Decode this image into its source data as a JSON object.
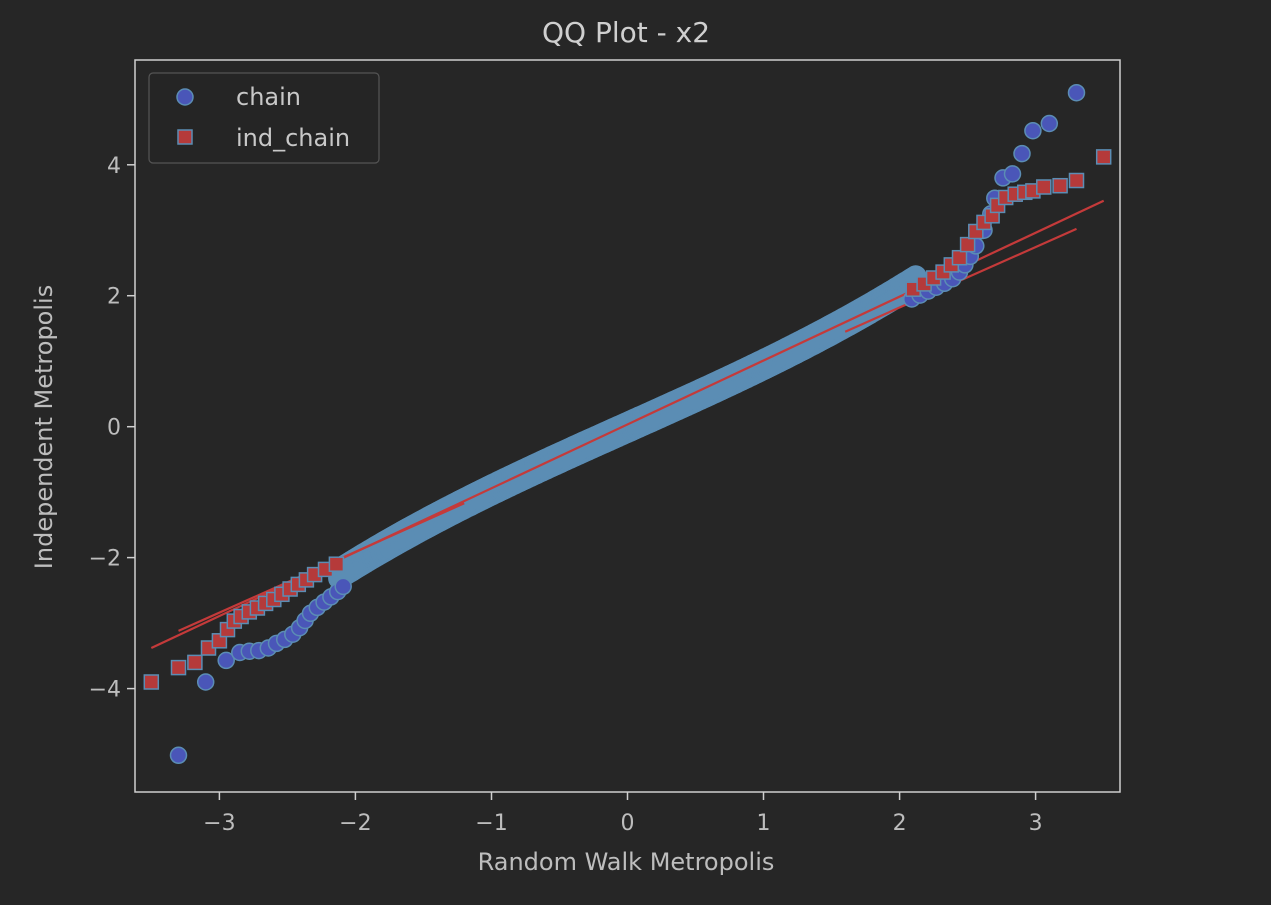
{
  "chart_data": {
    "type": "scatter",
    "title": "QQ Plot - x2",
    "xlabel": "Random Walk Metropolis",
    "ylabel": "Independent Metropolis",
    "xlim": [
      -3.62,
      3.62
    ],
    "ylim": [
      -5.58,
      5.6
    ],
    "xticks": [
      -3,
      -2,
      -1,
      0,
      1,
      2,
      3
    ],
    "xtick_labels": [
      "−3",
      "−2",
      "−1",
      "0",
      "1",
      "2",
      "3"
    ],
    "yticks": [
      -4,
      -2,
      0,
      2,
      4
    ],
    "ytick_labels": [
      "−4",
      "−2",
      "0",
      "2",
      "4"
    ],
    "grid": false,
    "legend_position": "top-left",
    "bulk_color": "#5b8db4",
    "series": [
      {
        "name": "chain",
        "marker": "circle",
        "fill": "#4a56b8",
        "edge": "#5b8db4",
        "points": [
          [
            -3.3,
            -5.02
          ],
          [
            -3.1,
            -3.9
          ],
          [
            -2.95,
            -3.57
          ],
          [
            -2.85,
            -3.45
          ],
          [
            -2.78,
            -3.43
          ],
          [
            -2.71,
            -3.42
          ],
          [
            -2.64,
            -3.38
          ],
          [
            -2.58,
            -3.31
          ],
          [
            -2.52,
            -3.25
          ],
          [
            -2.46,
            -3.17
          ],
          [
            -2.41,
            -3.07
          ],
          [
            -2.37,
            -2.96
          ],
          [
            -2.33,
            -2.85
          ],
          [
            -2.28,
            -2.76
          ],
          [
            -2.23,
            -2.68
          ],
          [
            -2.18,
            -2.6
          ],
          [
            -2.13,
            -2.52
          ],
          [
            -2.09,
            -2.44
          ],
          [
            2.09,
            1.95
          ],
          [
            2.15,
            2.01
          ],
          [
            2.21,
            2.07
          ],
          [
            2.27,
            2.13
          ],
          [
            2.33,
            2.19
          ],
          [
            2.39,
            2.26
          ],
          [
            2.44,
            2.36
          ],
          [
            2.48,
            2.47
          ],
          [
            2.52,
            2.6
          ],
          [
            2.56,
            2.76
          ],
          [
            2.62,
            3.0
          ],
          [
            2.67,
            3.25
          ],
          [
            2.7,
            3.49
          ],
          [
            2.76,
            3.8
          ],
          [
            2.83,
            3.86
          ],
          [
            2.9,
            4.17
          ],
          [
            2.98,
            4.52
          ],
          [
            3.1,
            4.63
          ],
          [
            3.3,
            5.1
          ]
        ],
        "fit_line": [
          [
            1.6,
            1.45
          ],
          [
            3.3,
            3.02
          ]
        ]
      },
      {
        "name": "ind_chain",
        "marker": "square",
        "fill": "#b53a3a",
        "edge": "#5b8db4",
        "points": [
          [
            -3.5,
            -3.9
          ],
          [
            -3.3,
            -3.68
          ],
          [
            -3.18,
            -3.6
          ],
          [
            -3.08,
            -3.38
          ],
          [
            -3.0,
            -3.27
          ],
          [
            -2.94,
            -3.1
          ],
          [
            -2.89,
            -2.97
          ],
          [
            -2.84,
            -2.9
          ],
          [
            -2.78,
            -2.83
          ],
          [
            -2.72,
            -2.77
          ],
          [
            -2.66,
            -2.7
          ],
          [
            -2.6,
            -2.64
          ],
          [
            -2.54,
            -2.56
          ],
          [
            -2.48,
            -2.48
          ],
          [
            -2.42,
            -2.41
          ],
          [
            -2.36,
            -2.34
          ],
          [
            -2.3,
            -2.26
          ],
          [
            -2.22,
            -2.18
          ],
          [
            -2.14,
            -2.1
          ],
          [
            2.1,
            2.1
          ],
          [
            2.18,
            2.18
          ],
          [
            2.25,
            2.27
          ],
          [
            2.32,
            2.36
          ],
          [
            2.38,
            2.47
          ],
          [
            2.44,
            2.58
          ],
          [
            2.5,
            2.78
          ],
          [
            2.56,
            2.98
          ],
          [
            2.62,
            3.12
          ],
          [
            2.68,
            3.22
          ],
          [
            2.72,
            3.38
          ],
          [
            2.78,
            3.5
          ],
          [
            2.85,
            3.55
          ],
          [
            2.92,
            3.58
          ],
          [
            2.98,
            3.6
          ],
          [
            3.06,
            3.66
          ],
          [
            3.18,
            3.68
          ],
          [
            3.3,
            3.76
          ],
          [
            3.5,
            4.12
          ]
        ],
        "fit_line": [
          [
            -3.5,
            -3.38
          ],
          [
            3.5,
            3.45
          ]
        ]
      }
    ]
  }
}
